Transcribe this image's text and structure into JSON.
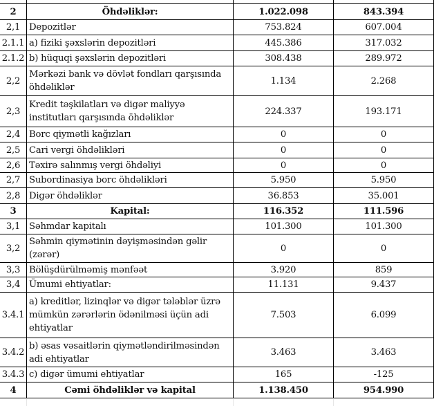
{
  "rows": [
    {
      "code": "2",
      "desc": "Öhdəliklər:",
      "v1": "1.022.098",
      "v2": "843.394",
      "bold": true
    },
    {
      "code": "2,1",
      "desc": "Depozitlər",
      "v1": "753.824",
      "v2": "607.004"
    },
    {
      "code": "2.1.1",
      "desc": "a) fiziki şəxslərin depozitləri",
      "v1": "445.386",
      "v2": "317.032"
    },
    {
      "code": "2.1.2",
      "desc": "b) hüquqi şəxslərin depozitləri",
      "v1": "308.438",
      "v2": "289.972"
    },
    {
      "code": "2,2",
      "desc": "Mərkəzi bank və dövlət fondları qarşısında öhdəliklər",
      "v1": "1.134",
      "v2": "2.268"
    },
    {
      "code": "2,3",
      "desc": "Kredit təşkilatları və digər maliyyə institutları qarşısında öhdəliklər",
      "v1": "224.337",
      "v2": "193.171"
    },
    {
      "code": "2,4",
      "desc": "Borc qiymətli kağızları",
      "v1": "0",
      "v2": "0"
    },
    {
      "code": "2,5",
      "desc": "Cari vergi öhdəlikləri",
      "v1": "0",
      "v2": "0"
    },
    {
      "code": "2,6",
      "desc": "Təxirə salınmış vergi öhdəliyi",
      "v1": "0",
      "v2": "0"
    },
    {
      "code": "2,7",
      "desc": "Subordinasiya borc öhdəlikləri",
      "v1": "5.950",
      "v2": "5.950"
    },
    {
      "code": "2,8",
      "desc": "Digər öhdəliklər",
      "v1": "36.853",
      "v2": "35.001"
    },
    {
      "code": "3",
      "desc": "Kapital:",
      "v1": "116.352",
      "v2": "111.596",
      "bold": true
    },
    {
      "code": "3,1",
      "desc": "Səhmdar kapitalı",
      "v1": "101.300",
      "v2": "101.300"
    },
    {
      "code": "3,2",
      "desc": "Səhmin qiymətinin dəyişməsindən gəlir (zərər)",
      "v1": "0",
      "v2": "0"
    },
    {
      "code": "3,3",
      "desc": "Bölüşdürülməmiş mənfəət",
      "v1": "3.920",
      "v2": "859"
    },
    {
      "code": "3,4",
      "desc": "Ümumi ehtiyatlar:",
      "v1": "11.131",
      "v2": "9.437"
    },
    {
      "code": "3.4.1",
      "desc": "a) kreditlər, lizinqlər və digər tələblər üzrə mümkün zərərlərin ödənilməsi üçün adi ehtiyatlar",
      "v1": "7.503",
      "v2": "6.099"
    },
    {
      "code": "3.4.2",
      "desc": "b) əsas vəsaitlərin qiymətləndirilməsindən adi ehtiyatlar",
      "v1": "3.463",
      "v2": "3.463"
    },
    {
      "code": "3.4.3",
      "desc": "c) digər ümumi ehtiyatlar",
      "v1": "165",
      "v2": "-125"
    },
    {
      "code": "4",
      "desc": "Cəmi öhdəliklər və kapital",
      "v1": "1.138.450",
      "v2": "954.990",
      "bold": true
    }
  ]
}
